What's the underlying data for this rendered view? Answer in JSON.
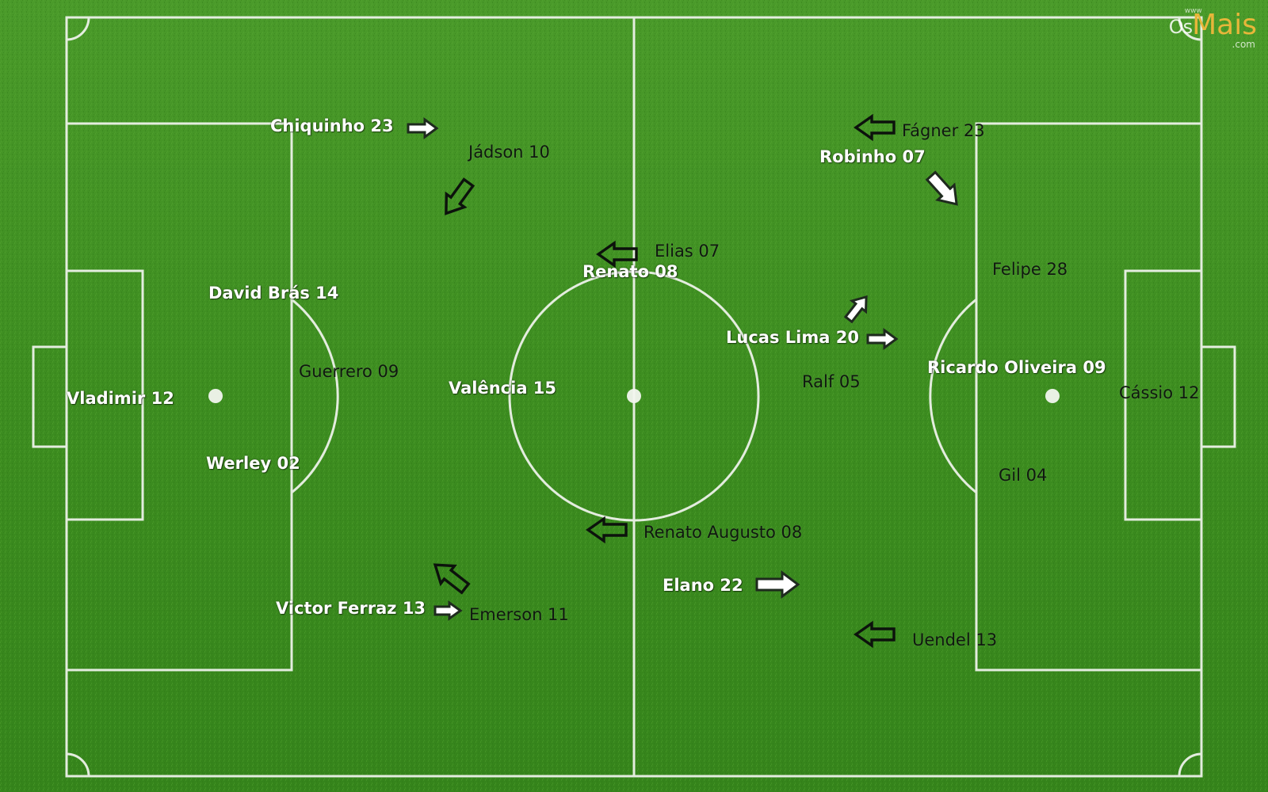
{
  "colors": {
    "grass": "#3f8f22",
    "grass_dark": "#2f7a18",
    "lines": "#f2f5ef",
    "home_label": "#ffffff",
    "away_label": "#101810",
    "logo_accent": "#e7b63a"
  },
  "watermark": {
    "prefix": "www",
    "os": "Os",
    "mais": "Mais",
    "suffix": ".com"
  },
  "players": [
    {
      "id": "vladimir",
      "label": "Vladimir 12",
      "team": "white"
    },
    {
      "id": "david-bras",
      "label": "David Brás 14",
      "team": "white"
    },
    {
      "id": "werley",
      "label": "Werley 02",
      "team": "white"
    },
    {
      "id": "chiquinho",
      "label": "Chiquinho 23",
      "team": "white"
    },
    {
      "id": "victor-ferraz",
      "label": "Victor Ferraz 13",
      "team": "white"
    },
    {
      "id": "valencia",
      "label": "Valência 15",
      "team": "white"
    },
    {
      "id": "renato",
      "label": "Renato 08",
      "team": "white"
    },
    {
      "id": "elano",
      "label": "Elano 22",
      "team": "white"
    },
    {
      "id": "lucas-lima",
      "label": "Lucas Lima 20",
      "team": "white"
    },
    {
      "id": "robinho",
      "label": "Robinho 07",
      "team": "white"
    },
    {
      "id": "ricardo-oliveira",
      "label": "Ricardo Oliveira 09",
      "team": "white"
    },
    {
      "id": "cassio",
      "label": "Cássio 12",
      "team": "black"
    },
    {
      "id": "felipe",
      "label": "Felipe 28",
      "team": "black"
    },
    {
      "id": "gil",
      "label": "Gil 04",
      "team": "black"
    },
    {
      "id": "fagner",
      "label": "Fágner 23",
      "team": "black"
    },
    {
      "id": "uendel",
      "label": "Uendel 13",
      "team": "black"
    },
    {
      "id": "ralf",
      "label": "Ralf 05",
      "team": "black"
    },
    {
      "id": "elias",
      "label": "Elias 07",
      "team": "black"
    },
    {
      "id": "renato-augusto",
      "label": "Renato Augusto 08",
      "team": "black"
    },
    {
      "id": "jadson",
      "label": "Jádson 10",
      "team": "black"
    },
    {
      "id": "emerson",
      "label": "Emerson 11",
      "team": "black"
    },
    {
      "id": "guerrero",
      "label": "Guerrero 09",
      "team": "black"
    }
  ],
  "arrows": [
    {
      "id": "chiquinho-run",
      "direction": "right",
      "style": "white"
    },
    {
      "id": "victor-ferraz-run",
      "direction": "right",
      "style": "white"
    },
    {
      "id": "elano-run",
      "direction": "right",
      "style": "white"
    },
    {
      "id": "lucas-lima-run",
      "direction": "right",
      "style": "white"
    },
    {
      "id": "lucas-lima-diagonal-run",
      "direction": "up-right",
      "style": "white"
    },
    {
      "id": "robinho-run",
      "direction": "down-right",
      "style": "white"
    },
    {
      "id": "fagner-run",
      "direction": "left",
      "style": "black"
    },
    {
      "id": "elias-run",
      "direction": "left",
      "style": "black"
    },
    {
      "id": "renato-augusto-run",
      "direction": "left",
      "style": "black"
    },
    {
      "id": "uendel-run",
      "direction": "left",
      "style": "black"
    },
    {
      "id": "jadson-run",
      "direction": "down-left",
      "style": "black"
    },
    {
      "id": "emerson-run",
      "direction": "up-left",
      "style": "black"
    }
  ]
}
